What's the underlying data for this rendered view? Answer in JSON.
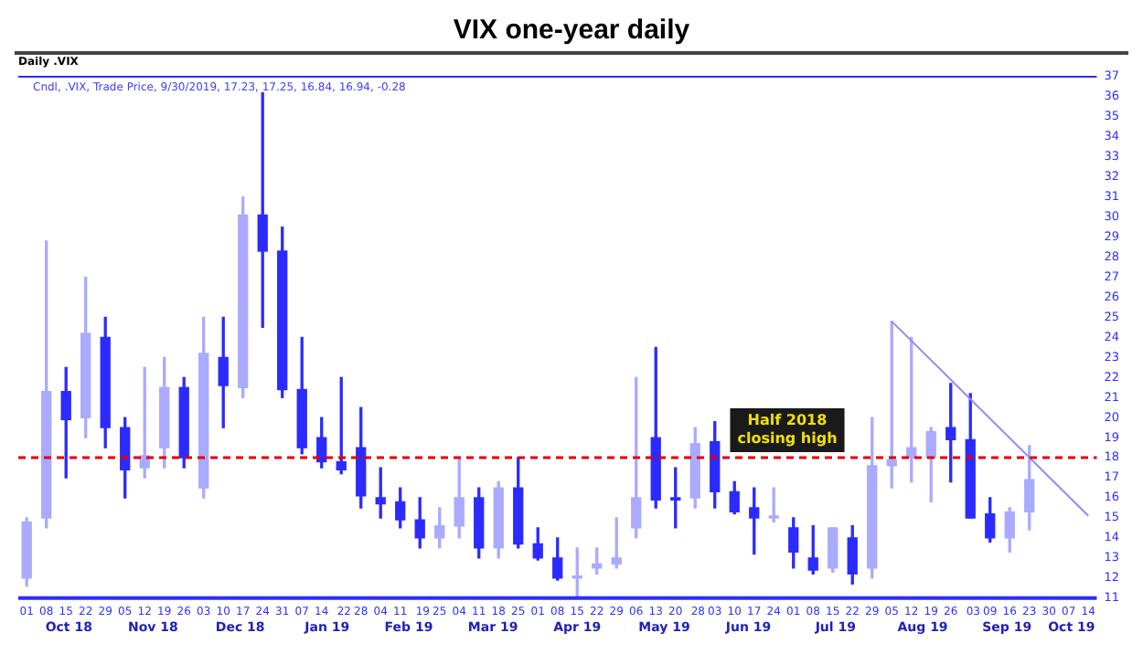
{
  "chart_data": {
    "type": "candlestick",
    "title": "VIX one-year daily",
    "annotations": [
      "Daily .VIX",
      "Cndl, .VIX, Trade Price, 9/30/2019, 17.23, 17.25, 16.84, 16.94, -0.28"
    ],
    "colors": [
      "#aaaaff",
      "#aaaaff",
      "#2b2bff",
      "#aaaaff",
      "#2b2bff",
      "#2b2bff",
      "#aaaaff",
      "#aaaaff",
      "#2b2bff",
      "#aaaaff",
      "#2b2bff",
      "#aaaaff",
      "#2b2bff",
      "#2b2bff",
      "#2b2bff",
      "#2b2bff",
      "#2b2bff",
      "#2b2bff",
      "#2b2bff",
      "#2b2bff",
      "#2b2bff",
      "#aaaaff",
      "#aaaaff",
      "#2b2bff",
      "#aaaaff",
      "#2b2bff",
      "#2b2bff",
      "#2b2bff",
      "#aaaaff",
      "#aaaaff",
      "#aaaaff",
      "#aaaaff",
      "#2b2bff",
      "#2b2bff",
      "#aaaaff",
      "#2b2bff",
      "#2b2bff",
      "#2b2bff",
      "#aaaaff",
      "#2b2bff",
      "#2b2bff",
      "#aaaaff",
      "#2b2bff",
      "#aaaaff",
      "#aaaaff",
      "#aaaaff",
      "#aaaaff",
      "#2b2bff",
      "#2b2bff",
      "#2b2bff",
      "#aaaaff",
      "#aaaaff"
    ],
    "x": [
      "2018-10-01",
      "2018-10-08",
      "2018-10-15",
      "2018-10-22",
      "2018-10-29",
      "2018-11-05",
      "2018-11-12",
      "2018-11-19",
      "2018-11-26",
      "2018-12-03",
      "2018-12-10",
      "2018-12-17",
      "2018-12-24",
      "2018-12-31",
      "2019-01-07",
      "2019-01-14",
      "2019-01-21",
      "2019-01-28",
      "2019-02-04",
      "2019-02-11",
      "2019-02-18",
      "2019-02-25",
      "2019-03-04",
      "2019-03-11",
      "2019-03-18",
      "2019-03-25",
      "2019-04-01",
      "2019-04-08",
      "2019-04-15",
      "2019-04-22",
      "2019-04-29",
      "2019-05-06",
      "2019-05-13",
      "2019-05-20",
      "2019-05-27",
      "2019-06-03",
      "2019-06-10",
      "2019-06-17",
      "2019-06-24",
      "2019-07-01",
      "2019-07-08",
      "2019-07-15",
      "2019-07-22",
      "2019-07-29",
      "2019-08-05",
      "2019-08-12",
      "2019-08-19",
      "2019-08-26",
      "2019-09-02",
      "2019-09-09",
      "2019-09-16",
      "2019-09-23"
    ],
    "ohlc": [
      [
        12.0,
        15.0,
        11.6,
        14.8
      ],
      [
        15.0,
        28.8,
        14.5,
        21.3
      ],
      [
        21.3,
        22.5,
        17.0,
        19.9
      ],
      [
        20.0,
        27.0,
        19.0,
        24.2
      ],
      [
        24.0,
        25.0,
        18.5,
        19.5
      ],
      [
        19.5,
        20.0,
        16.0,
        17.4
      ],
      [
        17.5,
        22.5,
        17.0,
        18.1
      ],
      [
        18.5,
        23.0,
        17.5,
        21.5
      ],
      [
        21.5,
        22.0,
        17.5,
        18.0
      ],
      [
        16.5,
        25.0,
        16.0,
        23.2
      ],
      [
        23.0,
        25.0,
        19.5,
        21.6
      ],
      [
        21.5,
        31.0,
        21.0,
        30.1
      ],
      [
        30.1,
        36.2,
        24.5,
        28.3
      ],
      [
        28.3,
        29.5,
        21.0,
        21.4
      ],
      [
        21.4,
        24.0,
        18.2,
        18.5
      ],
      [
        19.0,
        20.0,
        17.5,
        17.8
      ],
      [
        17.8,
        22.0,
        17.2,
        17.4
      ],
      [
        18.5,
        20.5,
        15.5,
        16.1
      ],
      [
        16.0,
        17.5,
        15.0,
        15.7
      ],
      [
        15.8,
        16.5,
        14.5,
        14.9
      ],
      [
        14.9,
        16.0,
        13.5,
        14.0
      ],
      [
        14.0,
        15.5,
        13.5,
        14.6
      ],
      [
        14.6,
        18.0,
        14.0,
        16.0
      ],
      [
        16.0,
        16.5,
        13.0,
        13.5
      ],
      [
        13.5,
        16.8,
        13.0,
        16.5
      ],
      [
        16.5,
        18.0,
        13.5,
        13.7
      ],
      [
        13.7,
        14.5,
        12.9,
        13.0
      ],
      [
        13.0,
        14.0,
        11.9,
        12.0
      ],
      [
        12.0,
        13.5,
        11.0,
        12.1
      ],
      [
        12.5,
        13.5,
        12.2,
        12.7
      ],
      [
        12.7,
        15.0,
        12.5,
        13.0
      ],
      [
        14.5,
        22.0,
        14.0,
        16.0
      ],
      [
        19.0,
        23.5,
        15.5,
        15.9
      ],
      [
        16.0,
        17.5,
        14.5,
        15.9
      ],
      [
        16.0,
        19.5,
        15.5,
        18.7
      ],
      [
        18.8,
        19.8,
        15.5,
        16.3
      ],
      [
        16.3,
        16.8,
        15.2,
        15.3
      ],
      [
        15.5,
        16.5,
        13.2,
        15.0
      ],
      [
        15.0,
        16.5,
        14.8,
        15.1
      ],
      [
        14.5,
        15.0,
        12.5,
        13.3
      ],
      [
        13.0,
        14.6,
        12.2,
        12.4
      ],
      [
        12.5,
        14.5,
        12.3,
        14.5
      ],
      [
        14.0,
        14.6,
        11.7,
        12.2
      ],
      [
        12.5,
        20.0,
        12.0,
        17.6
      ],
      [
        17.6,
        24.8,
        16.5,
        17.9
      ],
      [
        18.0,
        24.0,
        16.8,
        18.5
      ],
      [
        18.0,
        19.5,
        15.8,
        19.3
      ],
      [
        19.5,
        21.7,
        16.8,
        18.9
      ],
      [
        18.9,
        21.2,
        15.0,
        15.0
      ],
      [
        15.2,
        16.0,
        13.8,
        14.0
      ],
      [
        14.0,
        15.5,
        13.3,
        15.3
      ],
      [
        15.3,
        18.6,
        14.4,
        16.9
      ]
    ],
    "series": [
      {
        "type": "line",
        "x": [
          "2019-08-05",
          "2019-10-14"
        ],
        "values": [
          24.8,
          15.1
        ],
        "color": "#8c8cff"
      }
    ],
    "ref_lines": [
      {
        "axis": "y",
        "value": 18,
        "label": "Half 2018 closing high",
        "color": "#e00000",
        "line_style": "dashed"
      }
    ],
    "xlim": [
      "2018-09-28",
      "2019-10-17"
    ],
    "xticks": [
      {
        "value": "2018-10-01",
        "label": "01"
      },
      {
        "value": "2018-10-08",
        "label": "08"
      },
      {
        "value": "2018-10-15",
        "label": "15"
      },
      {
        "value": "2018-10-22",
        "label": "22"
      },
      {
        "value": "2018-10-29",
        "label": "29"
      },
      {
        "value": "2018-11-05",
        "label": "05"
      },
      {
        "value": "2018-11-12",
        "label": "12"
      },
      {
        "value": "2018-11-19",
        "label": "19"
      },
      {
        "value": "2018-11-26",
        "label": "26"
      },
      {
        "value": "2018-12-03",
        "label": "03"
      },
      {
        "value": "2018-12-10",
        "label": "10"
      },
      {
        "value": "2018-12-17",
        "label": "17"
      },
      {
        "value": "2018-12-24",
        "label": "24"
      },
      {
        "value": "2018-12-31",
        "label": "31"
      },
      {
        "value": "2019-01-07",
        "label": "07"
      },
      {
        "value": "2019-01-14",
        "label": "14"
      },
      {
        "value": "2019-01-22",
        "label": "22"
      },
      {
        "value": "2019-01-28",
        "label": "28"
      },
      {
        "value": "2019-02-04",
        "label": "04"
      },
      {
        "value": "2019-02-11",
        "label": "11"
      },
      {
        "value": "2019-02-19",
        "label": "19"
      },
      {
        "value": "2019-02-25",
        "label": "25"
      },
      {
        "value": "2019-03-04",
        "label": "04"
      },
      {
        "value": "2019-03-11",
        "label": "11"
      },
      {
        "value": "2019-03-18",
        "label": "18"
      },
      {
        "value": "2019-03-25",
        "label": "25"
      },
      {
        "value": "2019-04-01",
        "label": "01"
      },
      {
        "value": "2019-04-08",
        "label": "08"
      },
      {
        "value": "2019-04-15",
        "label": "15"
      },
      {
        "value": "2019-04-22",
        "label": "22"
      },
      {
        "value": "2019-04-29",
        "label": "29"
      },
      {
        "value": "2019-05-06",
        "label": "06"
      },
      {
        "value": "2019-05-13",
        "label": "13"
      },
      {
        "value": "2019-05-20",
        "label": "20"
      },
      {
        "value": "2019-05-28",
        "label": "28"
      },
      {
        "value": "2019-06-03",
        "label": "03"
      },
      {
        "value": "2019-06-10",
        "label": "10"
      },
      {
        "value": "2019-06-17",
        "label": "17"
      },
      {
        "value": "2019-06-24",
        "label": "24"
      },
      {
        "value": "2019-07-01",
        "label": "01"
      },
      {
        "value": "2019-07-08",
        "label": "08"
      },
      {
        "value": "2019-07-15",
        "label": "15"
      },
      {
        "value": "2019-07-22",
        "label": "22"
      },
      {
        "value": "2019-07-29",
        "label": "29"
      },
      {
        "value": "2019-08-05",
        "label": "05"
      },
      {
        "value": "2019-08-12",
        "label": "12"
      },
      {
        "value": "2019-08-19",
        "label": "19"
      },
      {
        "value": "2019-08-26",
        "label": "26"
      },
      {
        "value": "2019-09-03",
        "label": "03"
      },
      {
        "value": "2019-09-09",
        "label": "09"
      },
      {
        "value": "2019-09-16",
        "label": "16"
      },
      {
        "value": "2019-09-23",
        "label": "23"
      },
      {
        "value": "2019-09-30",
        "label": "30"
      },
      {
        "value": "2019-10-07",
        "label": "07"
      },
      {
        "value": "2019-10-14",
        "label": "14"
      }
    ],
    "x2lim": [
      "2018-09-28",
      "2019-10-17"
    ],
    "x2ticks": [
      {
        "value": "2018-10-16",
        "label": "Oct 18"
      },
      {
        "value": "2018-11-15",
        "label": "Nov 18"
      },
      {
        "value": "2018-12-16",
        "label": "Dec 18"
      },
      {
        "value": "2019-01-16",
        "label": "Jan 19"
      },
      {
        "value": "2019-02-14",
        "label": "Feb 19"
      },
      {
        "value": "2019-03-16",
        "label": "Mar 19"
      },
      {
        "value": "2019-04-15",
        "label": "Apr 19"
      },
      {
        "value": "2019-05-16",
        "label": "May 19"
      },
      {
        "value": "2019-06-15",
        "label": "Jun 19"
      },
      {
        "value": "2019-07-16",
        "label": "Jul 19"
      },
      {
        "value": "2019-08-16",
        "label": "Aug 19"
      },
      {
        "value": "2019-09-15",
        "label": "Sep 19"
      },
      {
        "value": "2019-10-08",
        "label": "Oct 19"
      }
    ],
    "ylim": [
      11,
      37
    ],
    "yticks": [
      11,
      12,
      13,
      14,
      15,
      16,
      17,
      18,
      19,
      20,
      21,
      22,
      23,
      24,
      25,
      26,
      27,
      28,
      29,
      30,
      31,
      32,
      33,
      34,
      35,
      36,
      37
    ],
    "grid": false,
    "legend": false
  }
}
